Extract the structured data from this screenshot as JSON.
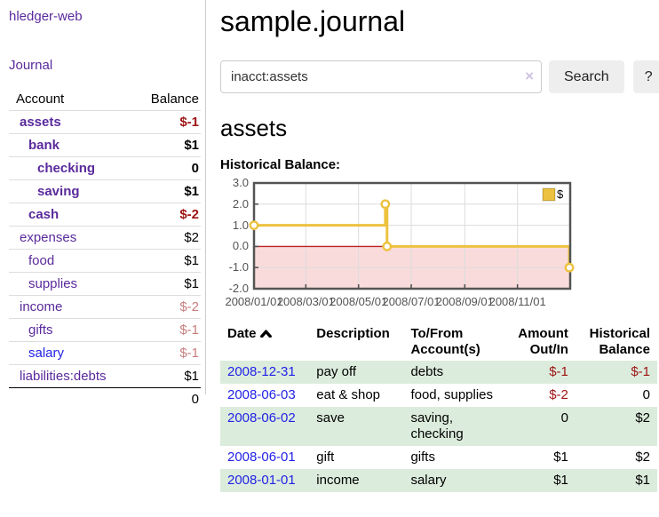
{
  "colors": {
    "link_purple": "#5a2a9c",
    "link_blue": "#2222e6",
    "negative_strong": "#9e1414",
    "negative_soft": "#c87e7e",
    "row_stripe_green": "#dcecdc",
    "chart_line_gold": "#edc240",
    "chart_marker_fill": "#ffffff",
    "chart_zero_line": "#bb2222",
    "chart_negative_fill": "#fadbdb",
    "chart_border": "#545454",
    "chart_grid": "#dcdcdc",
    "button_bg": "#eeeeee"
  },
  "sidebar": {
    "app_title": "hledger-web",
    "journal_link": "Journal",
    "accounts_table": {
      "headers": {
        "account": "Account",
        "balance": "Balance"
      },
      "rows": [
        {
          "name": "assets",
          "balance": "$-1",
          "depth": 1,
          "bold": true,
          "balance_style": "neg-strong",
          "link_style": "purple"
        },
        {
          "name": "bank",
          "balance": "$1",
          "depth": 2,
          "bold": true,
          "balance_style": "pos",
          "link_style": "purple"
        },
        {
          "name": "checking",
          "balance": "0",
          "depth": 3,
          "bold": true,
          "balance_style": "pos",
          "link_style": "purple"
        },
        {
          "name": "saving",
          "balance": "$1",
          "depth": 3,
          "bold": true,
          "balance_style": "pos",
          "link_style": "purple"
        },
        {
          "name": "cash",
          "balance": "$-2",
          "depth": 2,
          "bold": true,
          "balance_style": "neg-strong",
          "link_style": "purple"
        },
        {
          "name": "expenses",
          "balance": "$2",
          "depth": 1,
          "bold": false,
          "balance_style": "pos",
          "link_style": "purple"
        },
        {
          "name": "food",
          "balance": "$1",
          "depth": 2,
          "bold": false,
          "balance_style": "pos",
          "link_style": "purple"
        },
        {
          "name": "supplies",
          "balance": "$1",
          "depth": 2,
          "bold": false,
          "balance_style": "pos",
          "link_style": "purple"
        },
        {
          "name": "income",
          "balance": "$-2",
          "depth": 1,
          "bold": false,
          "balance_style": "neg-soft",
          "link_style": "purple"
        },
        {
          "name": "gifts",
          "balance": "$-1",
          "depth": 2,
          "bold": false,
          "balance_style": "neg-soft",
          "link_style": "purple"
        },
        {
          "name": "salary",
          "balance": "$-1",
          "depth": 2,
          "bold": false,
          "balance_style": "neg-soft",
          "link_style": "blue"
        },
        {
          "name": "liabilities:debts",
          "balance": "$1",
          "depth": 1,
          "bold": false,
          "balance_style": "pos",
          "link_style": "purple"
        }
      ],
      "total": "0"
    }
  },
  "main": {
    "title": "sample.journal",
    "search": {
      "value": "inacct:assets",
      "clear_icon": "×",
      "button_label": "Search",
      "help_button_label": "?"
    },
    "account_heading": "assets",
    "chart_label": "Historical Balance:"
  },
  "chart_data": {
    "type": "line",
    "step": true,
    "title": "Historical Balance:",
    "series": [
      {
        "name": "$",
        "color": "#edc240",
        "points": [
          {
            "date": "2008-01-01",
            "day": 0,
            "value": 1
          },
          {
            "date": "2008-06-01",
            "day": 152,
            "value": 2
          },
          {
            "date": "2008-06-03",
            "day": 154,
            "value": 0
          },
          {
            "date": "2008-12-31",
            "day": 365,
            "value": -1
          }
        ]
      }
    ],
    "x_domain_days": [
      0,
      366
    ],
    "ylim": [
      -2,
      3
    ],
    "yticks": [
      {
        "value": 3,
        "label": "3.0"
      },
      {
        "value": 2,
        "label": "2.0"
      },
      {
        "value": 1,
        "label": "1.0"
      },
      {
        "value": 0,
        "label": "0.0"
      },
      {
        "value": -1,
        "label": "-1.0"
      },
      {
        "value": -2,
        "label": "-2.0"
      }
    ],
    "xticks": [
      {
        "day": 0,
        "label": "2008/01/01"
      },
      {
        "day": 60,
        "label": "2008/03/01"
      },
      {
        "day": 121,
        "label": "2008/05/01"
      },
      {
        "day": 182,
        "label": "2008/07/01"
      },
      {
        "day": 244,
        "label": "2008/09/01"
      },
      {
        "day": 305,
        "label": "2008/11/01"
      }
    ],
    "legend": {
      "label": "$",
      "position": "top-right"
    },
    "grid": true,
    "negative_region_highlighted": true
  },
  "transactions": {
    "headers": {
      "date": "Date",
      "description": "Description",
      "accounts": "To/From Account(s)",
      "amount": "Amount Out/In",
      "balance": "Historical Balance"
    },
    "sort": {
      "column": "date",
      "direction": "ascending"
    },
    "rows": [
      {
        "date": "2008-12-31",
        "description": "pay off",
        "accounts": "debts",
        "amount": "$-1",
        "amount_negative": true,
        "balance": "$-1",
        "balance_negative": true
      },
      {
        "date": "2008-06-03",
        "description": "eat & shop",
        "accounts": "food, supplies",
        "amount": "$-2",
        "amount_negative": true,
        "balance": "0",
        "balance_negative": false
      },
      {
        "date": "2008-06-02",
        "description": "save",
        "accounts": "saving, checking",
        "amount": "0",
        "amount_negative": false,
        "balance": "$2",
        "balance_negative": false
      },
      {
        "date": "2008-06-01",
        "description": "gift",
        "accounts": "gifts",
        "amount": "$1",
        "amount_negative": false,
        "balance": "$2",
        "balance_negative": false
      },
      {
        "date": "2008-01-01",
        "description": "income",
        "accounts": "salary",
        "amount": "$1",
        "amount_negative": false,
        "balance": "$1",
        "balance_negative": false
      }
    ]
  }
}
